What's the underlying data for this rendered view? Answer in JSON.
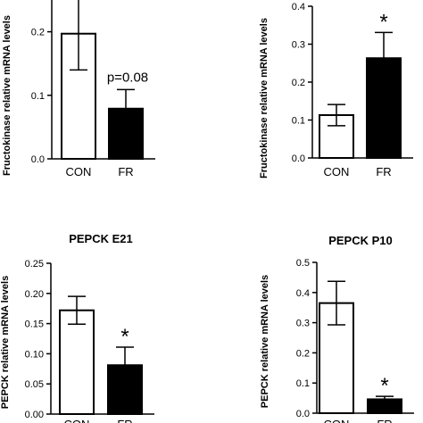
{
  "chart_data": [
    {
      "type": "bar",
      "title": "",
      "ylabel": "Fructokinase relative mRNA levels",
      "categories": [
        "CON",
        "FR"
      ],
      "values": [
        0.197,
        0.079
      ],
      "errors": [
        0.057,
        0.03
      ],
      "bar_colors": [
        "#ffffff",
        "#000000"
      ],
      "ylim": [
        0,
        0.25
      ],
      "yticks": [
        "0.0",
        "0.1",
        "0.2"
      ],
      "annotations": [
        "",
        "p=0.08"
      ]
    },
    {
      "type": "bar",
      "title": "",
      "ylabel": "Fructokinase relative mRNA levels",
      "categories": [
        "CON",
        "FR"
      ],
      "values": [
        0.113,
        0.263
      ],
      "errors": [
        0.028,
        0.068
      ],
      "bar_colors": [
        "#ffffff",
        "#000000"
      ],
      "ylim": [
        0,
        0.4
      ],
      "yticks": [
        "0.0",
        "0.1",
        "0.2",
        "0.3",
        "0.4"
      ],
      "annotations": [
        "",
        "*"
      ]
    },
    {
      "type": "bar",
      "title": "PEPCK E21",
      "ylabel": "PEPCK relative mRNA levels",
      "categories": [
        "CON",
        "FR"
      ],
      "values": [
        0.172,
        0.081
      ],
      "errors": [
        0.023,
        0.03
      ],
      "bar_colors": [
        "#ffffff",
        "#000000"
      ],
      "ylim": [
        0,
        0.25
      ],
      "yticks": [
        "0.00",
        "0.05",
        "0.10",
        "0.15",
        "0.20",
        "0.25"
      ],
      "annotations": [
        "",
        "*"
      ]
    },
    {
      "type": "bar",
      "title": "PEPCK P10",
      "ylabel": "PEPCK relative mRNA levels",
      "categories": [
        "CON",
        "FR"
      ],
      "values": [
        0.365,
        0.046
      ],
      "errors": [
        0.072,
        0.01
      ],
      "bar_colors": [
        "#ffffff",
        "#000000"
      ],
      "ylim": [
        0,
        0.5
      ],
      "yticks": [
        "0.0",
        "0.1",
        "0.2",
        "0.3",
        "0.4",
        "0.5"
      ],
      "annotations": [
        "",
        "*"
      ]
    }
  ]
}
